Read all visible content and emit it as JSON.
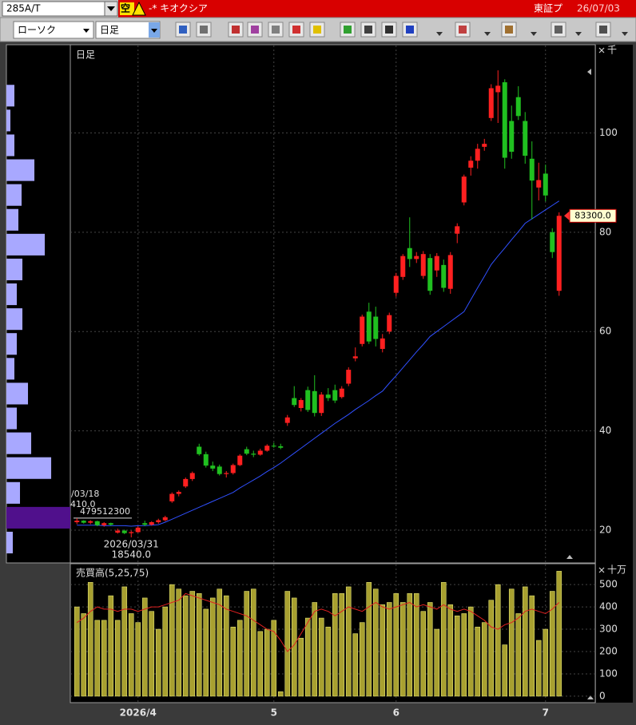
{
  "toolbar": {
    "symbol": "285A/T",
    "badge": "空",
    "name": "-* キオクシア",
    "market": "東証プ",
    "date": "26/07/03",
    "chart_style": "ローソク",
    "period": "日足"
  },
  "chart_data": [
    {
      "type": "candlestick",
      "title": "日足",
      "unit_label": "千",
      "up_color": "#ff2020",
      "down_color": "#20c020",
      "open": [
        21.6,
        21.9,
        21.5,
        21.8,
        21.0,
        21.4,
        19.5,
        19.9,
        19.4,
        19.6,
        21.4,
        21.1,
        21.6,
        22.0,
        25.8,
        27.3,
        28.8,
        30.3,
        36.8,
        35.3,
        33.0,
        32.8,
        31.3,
        31.5,
        33.1,
        36.3,
        35.4,
        35.2,
        36.0,
        37.0,
        36.9,
        41.6,
        46.6,
        44.6,
        48.2,
        48.0,
        43.6,
        47.3,
        48.2,
        46.8,
        49.5,
        54.6,
        57.5,
        64.0,
        63.0,
        56.5,
        60.0,
        67.8,
        71.0,
        76.8,
        74.6,
        71.2,
        74.8,
        72.3,
        73.4,
        68.6,
        79.7,
        86.0,
        93.0,
        94.4,
        97.2,
        103.0,
        108.2,
        110.2,
        102.4,
        107.2,
        102.4,
        94.8,
        89.0,
        91.8,
        80.0,
        68.2
      ],
      "high": [
        22.4,
        22.0,
        22.0,
        21.9,
        21.6,
        21.5,
        20.3,
        20.1,
        19.9,
        20.8,
        21.9,
        21.8,
        22.3,
        22.9,
        27.6,
        28.0,
        30.6,
        31.8,
        37.4,
        35.8,
        33.8,
        33.2,
        31.9,
        33.4,
        35.3,
        36.8,
        36.0,
        36.4,
        37.3,
        37.6,
        37.4,
        43.2,
        49.0,
        46.6,
        48.9,
        51.2,
        47.8,
        48.6,
        49.3,
        49.0,
        52.8,
        56.8,
        63.4,
        65.8,
        65.0,
        59.5,
        63.8,
        71.8,
        75.6,
        83.0,
        76.0,
        76.2,
        75.6,
        75.8,
        74.5,
        76.0,
        81.8,
        91.6,
        95.3,
        97.8,
        98.8,
        109.8,
        112.6,
        110.8,
        105.5,
        109.4,
        104.2,
        98.3,
        94.0,
        93.6,
        80.8,
        84.0
      ],
      "low": [
        21.2,
        21.3,
        21.2,
        20.8,
        20.7,
        20.9,
        19.3,
        19.2,
        18.54,
        19.5,
        20.8,
        20.9,
        21.3,
        21.8,
        25.5,
        26.8,
        28.5,
        29.9,
        35.0,
        32.6,
        31.9,
        31.0,
        30.6,
        31.2,
        32.9,
        35.1,
        34.7,
        35.0,
        35.8,
        36.6,
        36.3,
        41.0,
        44.8,
        43.9,
        43.8,
        42.9,
        43.0,
        46.0,
        45.6,
        46.5,
        49.0,
        54.0,
        57.0,
        57.5,
        57.0,
        55.8,
        59.5,
        67.0,
        70.4,
        73.0,
        73.8,
        70.6,
        67.4,
        71.0,
        68.0,
        67.6,
        77.8,
        85.4,
        91.4,
        92.8,
        96.4,
        102.4,
        102.0,
        92.8,
        94.8,
        102.6,
        93.8,
        82.6,
        86.4,
        86.2,
        74.8,
        67.2
      ],
      "close": [
        21.9,
        21.5,
        21.8,
        21.0,
        21.4,
        21.1,
        19.9,
        19.4,
        19.6,
        20.5,
        21.1,
        21.6,
        22.0,
        22.6,
        27.3,
        27.7,
        30.3,
        31.5,
        35.3,
        33.0,
        32.4,
        31.3,
        31.5,
        33.1,
        35.0,
        35.4,
        35.2,
        36.0,
        37.0,
        36.9,
        36.6,
        42.7,
        45.2,
        46.2,
        44.2,
        43.6,
        47.3,
        46.6,
        46.1,
        48.5,
        52.3,
        55.0,
        63.0,
        58.0,
        58.5,
        58.6,
        63.3,
        71.2,
        75.2,
        74.6,
        75.2,
        75.6,
        68.2,
        75.2,
        68.8,
        75.4,
        81.2,
        91.2,
        94.4,
        96.8,
        97.8,
        109.0,
        109.5,
        95.0,
        96.2,
        103.4,
        95.4,
        90.4,
        90.5,
        87.4,
        76.0,
        83.3
      ],
      "lines": [
        {
          "color": "#3050ff",
          "values": [
            21.0,
            21.0,
            21.0,
            21.0,
            20.9,
            20.9,
            20.9,
            20.9,
            20.8,
            20.9,
            20.9,
            21.0,
            21.1,
            21.6,
            22.2,
            22.8,
            23.4,
            24.0,
            24.6,
            25.2,
            25.8,
            26.4,
            27.0,
            27.6,
            28.5,
            29.3,
            30.1,
            30.9,
            31.8,
            32.6,
            33.5,
            34.5,
            35.5,
            36.5,
            37.5,
            38.5,
            39.5,
            40.5,
            41.5,
            42.4,
            43.3,
            44.3,
            45.2,
            46.1,
            47.1,
            48.0,
            49.6,
            51.1,
            52.7,
            54.3,
            55.9,
            57.4,
            59.0,
            60.0,
            61.0,
            62.0,
            63.0,
            64.0,
            66.4,
            68.8,
            71.1,
            73.5,
            75.2,
            76.8,
            78.5,
            80.1,
            81.8,
            82.7,
            83.6,
            84.5,
            85.4,
            86.3
          ]
        }
      ],
      "last_close_label": "83300.0",
      "low_annotation": {
        "date": "2026/03/31",
        "label": "18540.0"
      },
      "start_annotation": {
        "date": "/03/18",
        "label": "410.0"
      },
      "ylim": [
        13.4,
        117.6
      ],
      "yticks": [
        20,
        40,
        60,
        80,
        100
      ],
      "grid": true
    },
    {
      "type": "bar",
      "title": "売買高(5,25,75)",
      "unit_label": "十万",
      "color": "#a8a030",
      "categories": [
        null,
        null,
        null,
        null,
        null,
        null,
        null,
        null,
        null,
        "2026/4",
        null,
        null,
        null,
        null,
        null,
        null,
        null,
        null,
        null,
        null,
        null,
        null,
        null,
        null,
        null,
        null,
        null,
        null,
        null,
        "5",
        null,
        null,
        null,
        null,
        null,
        null,
        null,
        null,
        null,
        null,
        null,
        null,
        null,
        null,
        null,
        null,
        null,
        "6",
        null,
        null,
        null,
        null,
        null,
        null,
        null,
        null,
        null,
        null,
        null,
        null,
        null,
        null,
        null,
        null,
        null,
        null,
        null,
        null,
        null,
        "7",
        null,
        null
      ],
      "values": [
        400,
        370,
        510,
        340,
        340,
        450,
        340,
        490,
        370,
        330,
        440,
        380,
        300,
        400,
        500,
        480,
        450,
        470,
        460,
        390,
        440,
        480,
        450,
        310,
        340,
        470,
        480,
        290,
        300,
        340,
        20,
        470,
        440,
        260,
        350,
        420,
        350,
        310,
        460,
        460,
        490,
        280,
        330,
        510,
        480,
        410,
        420,
        460,
        420,
        460,
        460,
        380,
        420,
        300,
        510,
        410,
        360,
        370,
        400,
        310,
        330,
        430,
        500,
        230,
        480,
        370,
        490,
        450,
        250,
        300,
        470,
        560
      ],
      "lines": [
        {
          "color": "#e02020",
          "values": [
            330,
            350,
            380,
            400,
            390,
            390,
            380,
            390,
            390,
            380,
            390,
            400,
            400,
            410,
            420,
            430,
            460,
            450,
            440,
            430,
            420,
            410,
            390,
            380,
            370,
            360,
            340,
            320,
            300,
            290,
            250,
            200,
            230,
            280,
            330,
            380,
            390,
            380,
            360,
            380,
            400,
            390,
            380,
            400,
            420,
            400,
            390,
            400,
            410,
            420,
            400,
            410,
            400,
            390,
            410,
            390,
            380,
            390,
            380,
            360,
            340,
            310,
            300,
            320,
            330,
            350,
            380,
            390,
            380,
            370,
            390,
            420
          ]
        }
      ],
      "ylim": [
        -29,
        590
      ],
      "yticks": [
        0,
        100,
        200,
        300,
        400,
        500
      ],
      "grid": true
    },
    {
      "type": "histogram",
      "orientation": "horizontal",
      "color": "#a8a8ff",
      "highlight_color": "#50108c",
      "bins": [
        15,
        20,
        25,
        30,
        35,
        40,
        45,
        50,
        55,
        60,
        65,
        70,
        75,
        80,
        85,
        90,
        95,
        100,
        105,
        110
      ],
      "values": [
        48000000,
        479512300,
        102000000,
        336000000,
        186000000,
        78000000,
        162000000,
        60000000,
        78000000,
        120000000,
        78000000,
        120000000,
        288000000,
        90000000,
        114000000,
        210000000,
        60000000,
        30000000,
        60000000
      ],
      "highlight_label": "479512300",
      "xlim": [
        0,
        479512300
      ]
    }
  ]
}
